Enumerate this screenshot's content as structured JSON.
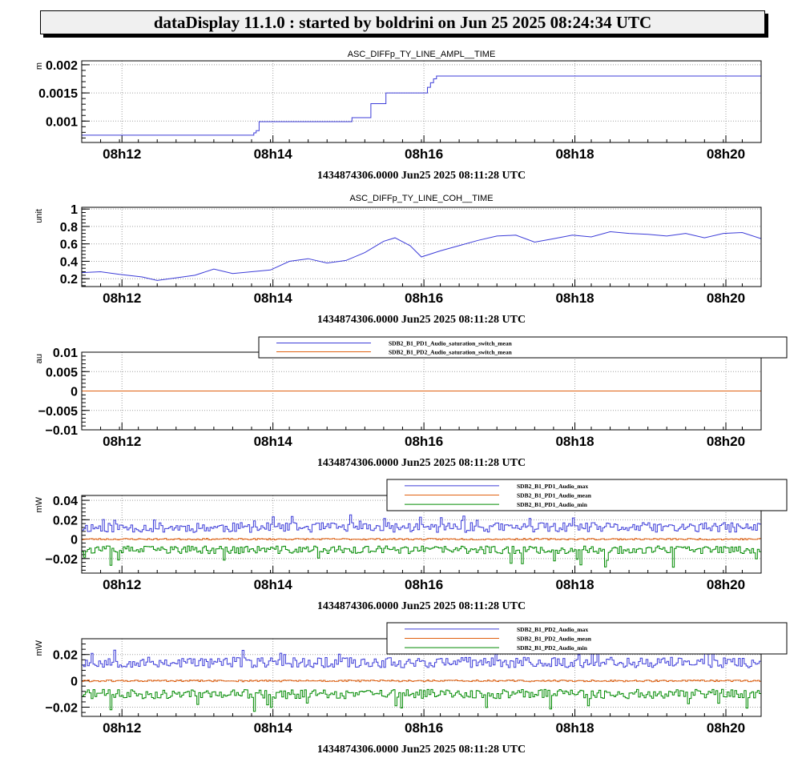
{
  "header": {
    "title": "dataDisplay 11.1.0 : started by boldrini on Jun 25 2025 08:24:34 UTC"
  },
  "colors": {
    "blue": "#3c3cd8",
    "orange": "#e06010",
    "green": "#008a00",
    "grid": "#a0a0a0"
  },
  "chart_data": [
    {
      "type": "line",
      "title": "ASC_DIFFp_TY_LINE_AMPL__TIME",
      "ylabel": "m",
      "xlabel": "1434874306.0000 Jun25 2025 08:11:28 UTC",
      "x_unit": "minutes after 08:11:28",
      "xlim": [
        0,
        9
      ],
      "ylim": [
        0.00062,
        0.00207
      ],
      "xticks": [
        {
          "value": 0.533,
          "label": "08h12"
        },
        {
          "value": 2.533,
          "label": "08h14"
        },
        {
          "value": 4.533,
          "label": "08h16"
        },
        {
          "value": 6.533,
          "label": "08h18"
        },
        {
          "value": 8.533,
          "label": "08h20"
        }
      ],
      "yticks": [
        {
          "value": 0.001,
          "label": "0.001"
        },
        {
          "value": 0.0015,
          "label": "0.0015"
        },
        {
          "value": 0.002,
          "label": "0.002"
        }
      ],
      "series": [
        {
          "color": "blue",
          "style": "step",
          "x": [
            0,
            2.25,
            2.28,
            2.31,
            2.35,
            3.5,
            3.58,
            3.78,
            3.83,
            4.0,
            4.03,
            4.55,
            4.58,
            4.62,
            4.66,
            4.7,
            9.0
          ],
          "y": [
            0.00075,
            0.00075,
            0.00079,
            0.00083,
            0.00099,
            0.00099,
            0.00106,
            0.00106,
            0.00131,
            0.00131,
            0.0015,
            0.0015,
            0.0016,
            0.00168,
            0.00175,
            0.0018,
            0.0018
          ]
        }
      ]
    },
    {
      "type": "line",
      "title": "ASC_DIFFp_TY_LINE_COH__TIME",
      "ylabel": "unit",
      "xlabel": "1434874306.0000 Jun25 2025 08:11:28 UTC",
      "x_unit": "minutes after 08:11:28",
      "xlim": [
        0,
        9
      ],
      "ylim": [
        0.11,
        1.02
      ],
      "xticks": [
        {
          "value": 0.533,
          "label": "08h12"
        },
        {
          "value": 2.533,
          "label": "08h14"
        },
        {
          "value": 4.533,
          "label": "08h16"
        },
        {
          "value": 6.533,
          "label": "08h18"
        },
        {
          "value": 8.533,
          "label": "08h20"
        }
      ],
      "yticks": [
        {
          "value": 0.2,
          "label": "0.2"
        },
        {
          "value": 0.4,
          "label": "0.4"
        },
        {
          "value": 0.6,
          "label": "0.6"
        },
        {
          "value": 0.8,
          "label": "0.8"
        },
        {
          "value": 1.0,
          "label": "1"
        }
      ],
      "series": [
        {
          "color": "blue",
          "style": "line",
          "x": [
            0,
            0.25,
            0.5,
            0.8,
            1.0,
            1.25,
            1.5,
            1.75,
            2.0,
            2.25,
            2.5,
            2.75,
            3.0,
            3.25,
            3.5,
            3.75,
            4.0,
            4.15,
            4.35,
            4.5,
            4.75,
            5.0,
            5.25,
            5.5,
            5.75,
            6.0,
            6.25,
            6.5,
            6.75,
            7.0,
            7.25,
            7.5,
            7.75,
            8.0,
            8.25,
            8.5,
            8.75,
            9.0
          ],
          "y": [
            0.27,
            0.28,
            0.25,
            0.22,
            0.18,
            0.21,
            0.24,
            0.31,
            0.26,
            0.28,
            0.3,
            0.4,
            0.43,
            0.38,
            0.41,
            0.5,
            0.63,
            0.67,
            0.58,
            0.45,
            0.52,
            0.58,
            0.64,
            0.69,
            0.7,
            0.62,
            0.66,
            0.7,
            0.68,
            0.74,
            0.72,
            0.71,
            0.69,
            0.72,
            0.67,
            0.72,
            0.73,
            0.66
          ]
        }
      ]
    },
    {
      "type": "line",
      "ylabel": "au",
      "xlabel": "1434874306.0000 Jun25 2025 08:11:28 UTC",
      "x_unit": "minutes after 08:11:28",
      "xlim": [
        0,
        9
      ],
      "ylim": [
        -0.01,
        0.01
      ],
      "xticks": [
        {
          "value": 0.533,
          "label": "08h12"
        },
        {
          "value": 2.533,
          "label": "08h14"
        },
        {
          "value": 4.533,
          "label": "08h16"
        },
        {
          "value": 6.533,
          "label": "08h18"
        },
        {
          "value": 8.533,
          "label": "08h20"
        }
      ],
      "yticks": [
        {
          "value": -0.01,
          "label": "−0.01"
        },
        {
          "value": -0.005,
          "label": "−0.005"
        },
        {
          "value": 0,
          "label": "0"
        },
        {
          "value": 0.005,
          "label": "0.005"
        },
        {
          "value": 0.01,
          "label": "0.01"
        }
      ],
      "legend": [
        "SDB2_B1_PD1_Audio_saturation_switch_mean",
        "SDB2_B1_PD2_Audio_saturation_switch_mean"
      ],
      "series": [
        {
          "name": "SDB2_B1_PD1_Audio_saturation_switch_mean",
          "color": "blue",
          "style": "line",
          "x": [
            0,
            9
          ],
          "y": [
            0,
            0
          ]
        },
        {
          "name": "SDB2_B1_PD2_Audio_saturation_switch_mean",
          "color": "orange",
          "style": "line",
          "x": [
            0,
            9
          ],
          "y": [
            0,
            0
          ]
        }
      ]
    },
    {
      "type": "line",
      "ylabel": "mW",
      "xlabel": "1434874306.0000 Jun25 2025 08:11:28 UTC",
      "x_unit": "minutes after 08:11:28",
      "xlim": [
        0,
        9
      ],
      "ylim": [
        -0.035,
        0.045
      ],
      "xticks": [
        {
          "value": 0.533,
          "label": "08h12"
        },
        {
          "value": 2.533,
          "label": "08h14"
        },
        {
          "value": 4.533,
          "label": "08h16"
        },
        {
          "value": 6.533,
          "label": "08h18"
        },
        {
          "value": 8.533,
          "label": "08h20"
        }
      ],
      "yticks": [
        {
          "value": -0.02,
          "label": "−0.02"
        },
        {
          "value": 0,
          "label": "0"
        },
        {
          "value": 0.02,
          "label": "0.02"
        },
        {
          "value": 0.04,
          "label": "0.04"
        }
      ],
      "legend": [
        "SDB2_B1_PD1_Audio_max",
        "SDB2_B1_PD1_Audio_mean",
        "SDB2_B1_PD1_Audio_min"
      ],
      "series": [
        {
          "name": "SDB2_B1_PD1_Audio_max",
          "color": "blue",
          "style": "noisy-step",
          "level": 0.012,
          "noise": 0.005,
          "spike": 0.014,
          "seed": 11
        },
        {
          "name": "SDB2_B1_PD1_Audio_mean",
          "color": "orange",
          "style": "noisy-step",
          "level": 0.0,
          "noise": 0.0008,
          "spike": 0.0,
          "seed": 23
        },
        {
          "name": "SDB2_B1_PD1_Audio_min",
          "color": "green",
          "style": "noisy-step",
          "level": -0.011,
          "noise": 0.004,
          "spike": -0.018,
          "seed": 37
        }
      ]
    },
    {
      "type": "line",
      "ylabel": "mW",
      "xlabel": "1434874306.0000 Jun25 2025 08:11:28 UTC",
      "x_unit": "minutes after 08:11:28",
      "xlim": [
        0,
        9
      ],
      "ylim": [
        -0.027,
        0.032
      ],
      "xticks": [
        {
          "value": 0.533,
          "label": "08h12"
        },
        {
          "value": 2.533,
          "label": "08h14"
        },
        {
          "value": 4.533,
          "label": "08h16"
        },
        {
          "value": 6.533,
          "label": "08h18"
        },
        {
          "value": 8.533,
          "label": "08h20"
        }
      ],
      "yticks": [
        {
          "value": -0.02,
          "label": "−0.02"
        },
        {
          "value": 0,
          "label": "0"
        },
        {
          "value": 0.02,
          "label": "0.02"
        }
      ],
      "legend": [
        "SDB2_B1_PD2_Audio_max",
        "SDB2_B1_PD2_Audio_mean",
        "SDB2_B1_PD2_Audio_min"
      ],
      "series": [
        {
          "name": "SDB2_B1_PD2_Audio_max",
          "color": "blue",
          "style": "noisy-step",
          "level": 0.014,
          "noise": 0.004,
          "spike": 0.011,
          "seed": 53
        },
        {
          "name": "SDB2_B1_PD2_Audio_mean",
          "color": "orange",
          "style": "noisy-step",
          "level": 0.0,
          "noise": 0.0007,
          "spike": 0.0,
          "seed": 61
        },
        {
          "name": "SDB2_B1_PD2_Audio_min",
          "color": "green",
          "style": "noisy-step",
          "level": -0.01,
          "noise": 0.0035,
          "spike": -0.014,
          "seed": 71
        }
      ]
    }
  ]
}
